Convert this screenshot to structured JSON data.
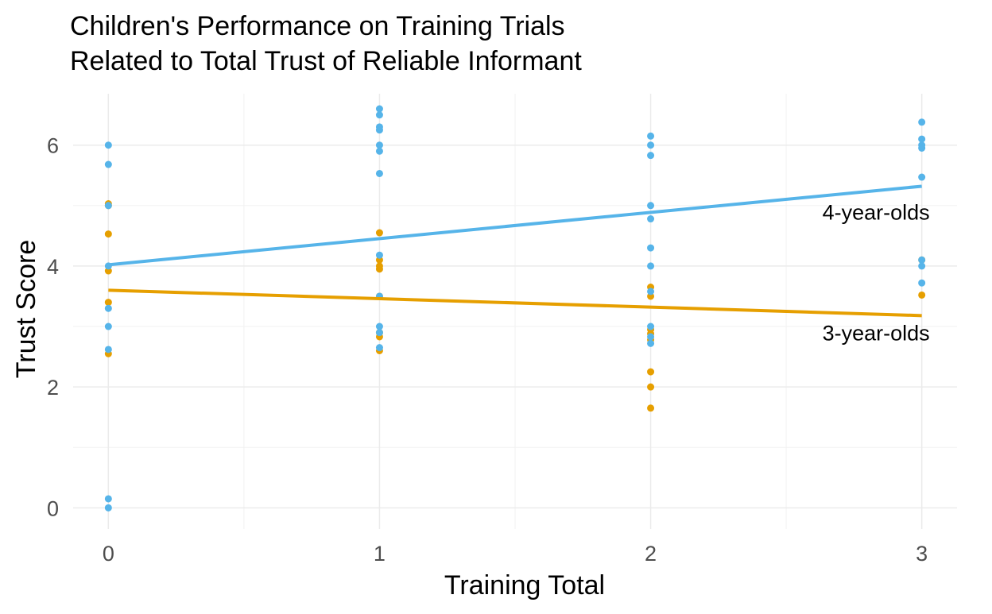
{
  "chart_data": {
    "type": "scatter",
    "title_line1": "Children's Performance on Training Trials",
    "title_line2": "Related to Total Trust of Reliable Informant",
    "xlabel": "Training Total",
    "ylabel": "Trust Score",
    "xlim": [
      -0.13,
      3.13
    ],
    "ylim": [
      -0.35,
      6.85
    ],
    "x_ticks": [
      0,
      1,
      2,
      3
    ],
    "y_ticks": [
      0,
      2,
      4,
      6
    ],
    "x_minor": [
      0.5,
      1.5,
      2.5
    ],
    "y_minor": [
      1,
      3,
      5
    ],
    "grid": true,
    "legend": "direct labels",
    "series": [
      {
        "name": "4-year-olds",
        "color": "#56B4E9",
        "label_at": [
          3,
          4.9
        ],
        "trend": {
          "x": [
            0,
            3
          ],
          "y": [
            4.02,
            5.32
          ]
        },
        "points": [
          [
            0,
            6.0
          ],
          [
            0,
            5.68
          ],
          [
            0,
            5.0
          ],
          [
            0,
            4.0
          ],
          [
            0,
            3.3
          ],
          [
            0,
            3.0
          ],
          [
            0,
            2.62
          ],
          [
            0,
            0.15
          ],
          [
            0,
            0.0
          ],
          [
            1,
            6.6
          ],
          [
            1,
            6.5
          ],
          [
            1,
            6.3
          ],
          [
            1,
            6.25
          ],
          [
            1,
            6.0
          ],
          [
            1,
            5.9
          ],
          [
            1,
            5.53
          ],
          [
            1,
            4.18
          ],
          [
            1,
            3.5
          ],
          [
            1,
            3.0
          ],
          [
            1,
            2.9
          ],
          [
            1,
            2.65
          ],
          [
            2,
            6.15
          ],
          [
            2,
            6.0
          ],
          [
            2,
            5.83
          ],
          [
            2,
            5.0
          ],
          [
            2,
            4.78
          ],
          [
            2,
            4.3
          ],
          [
            2,
            4.0
          ],
          [
            2,
            3.58
          ],
          [
            2,
            3.0
          ],
          [
            2,
            2.83
          ],
          [
            2,
            2.72
          ],
          [
            3,
            6.38
          ],
          [
            3,
            6.1
          ],
          [
            3,
            6.0
          ],
          [
            3,
            5.95
          ],
          [
            3,
            5.47
          ],
          [
            3,
            4.1
          ],
          [
            3,
            4.0
          ],
          [
            3,
            3.72
          ]
        ]
      },
      {
        "name": "3-year-olds",
        "color": "#E69F00",
        "label_at": [
          3,
          2.9
        ],
        "trend": {
          "x": [
            0,
            3
          ],
          "y": [
            3.6,
            3.18
          ]
        },
        "points": [
          [
            0,
            5.03
          ],
          [
            0,
            5.0
          ],
          [
            0,
            4.53
          ],
          [
            0,
            3.92
          ],
          [
            0,
            3.4
          ],
          [
            0,
            2.55
          ],
          [
            1,
            4.55
          ],
          [
            1,
            4.1
          ],
          [
            1,
            4.0
          ],
          [
            1,
            3.95
          ],
          [
            1,
            3.5
          ],
          [
            1,
            2.9
          ],
          [
            1,
            2.83
          ],
          [
            1,
            2.6
          ],
          [
            2,
            3.65
          ],
          [
            2,
            3.5
          ],
          [
            2,
            2.95
          ],
          [
            2,
            2.88
          ],
          [
            2,
            2.78
          ],
          [
            2,
            2.25
          ],
          [
            2,
            2.0
          ],
          [
            2,
            1.65
          ],
          [
            3,
            4.1
          ],
          [
            3,
            3.52
          ]
        ]
      }
    ]
  }
}
